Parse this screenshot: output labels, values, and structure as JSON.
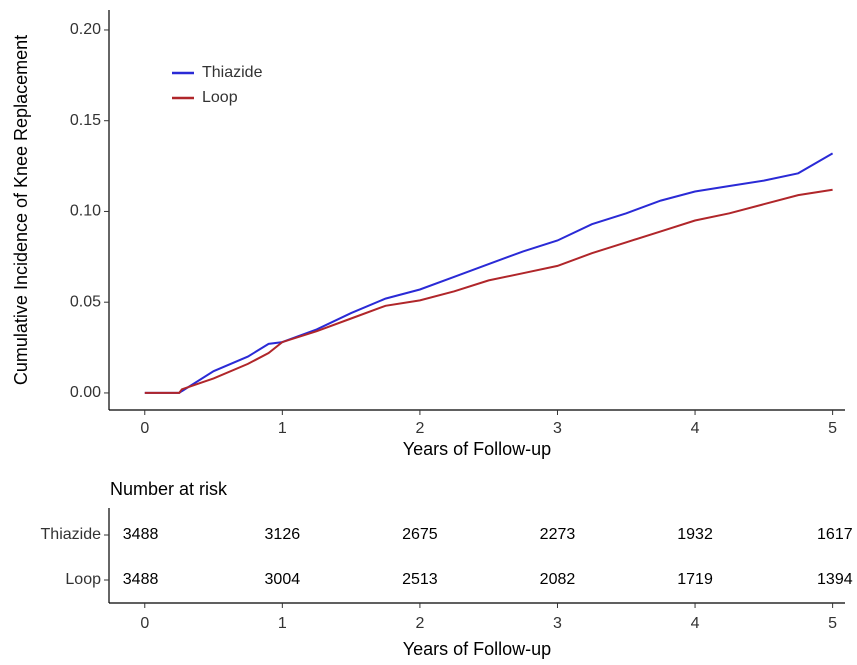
{
  "chart_data": [
    {
      "type": "line",
      "ylabel": "Cumulative Incidence of Knee Replacement",
      "xlabel": "Years of Follow-up",
      "x": [
        0,
        0.25,
        0.27,
        0.5,
        0.75,
        0.9,
        1,
        1.25,
        1.5,
        1.75,
        2,
        2.25,
        2.5,
        2.75,
        3,
        3.25,
        3.5,
        3.75,
        4,
        4.25,
        4.5,
        4.75,
        5
      ],
      "series": [
        {
          "name": "Thiazide",
          "color": "#2a2ad6",
          "values": [
            0,
            0,
            0.001,
            0.012,
            0.02,
            0.027,
            0.028,
            0.035,
            0.044,
            0.052,
            0.057,
            0.064,
            0.071,
            0.078,
            0.084,
            0.093,
            0.099,
            0.106,
            0.111,
            0.114,
            0.117,
            0.121,
            0.132
          ]
        },
        {
          "name": "Loop",
          "color": "#b0262a",
          "values": [
            0,
            0,
            0.002,
            0.008,
            0.016,
            0.022,
            0.028,
            0.034,
            0.041,
            0.048,
            0.051,
            0.056,
            0.062,
            0.066,
            0.07,
            0.077,
            0.083,
            0.089,
            0.095,
            0.099,
            0.104,
            0.109,
            0.112
          ]
        }
      ],
      "xlim": [
        -0.26,
        5.09
      ],
      "xticks": [
        0,
        1,
        2,
        3,
        4,
        5
      ],
      "ylim": [
        -0.0094,
        0.211
      ],
      "yticks": [
        {
          "value": 0,
          "label": "0.00"
        },
        {
          "value": 0.05,
          "label": "0.05"
        },
        {
          "value": 0.1,
          "label": "0.10"
        },
        {
          "value": 0.15,
          "label": "0.15"
        },
        {
          "value": 0.2,
          "label": "0.20"
        }
      ],
      "legend": "upper left"
    },
    {
      "type": "table",
      "title": "Number at risk",
      "xlabel": "Years of Follow-up",
      "x": [
        0,
        1,
        2,
        3,
        4,
        5
      ],
      "xlim": [
        -0.26,
        5.09
      ],
      "xticks": [
        0,
        1,
        2,
        3,
        4,
        5
      ],
      "rows": [
        {
          "name": "Thiazide",
          "values": [
            3488,
            3126,
            2675,
            2273,
            1932,
            1617
          ]
        },
        {
          "name": "Loop",
          "values": [
            3488,
            3004,
            2513,
            2082,
            1719,
            1394
          ]
        }
      ]
    }
  ]
}
